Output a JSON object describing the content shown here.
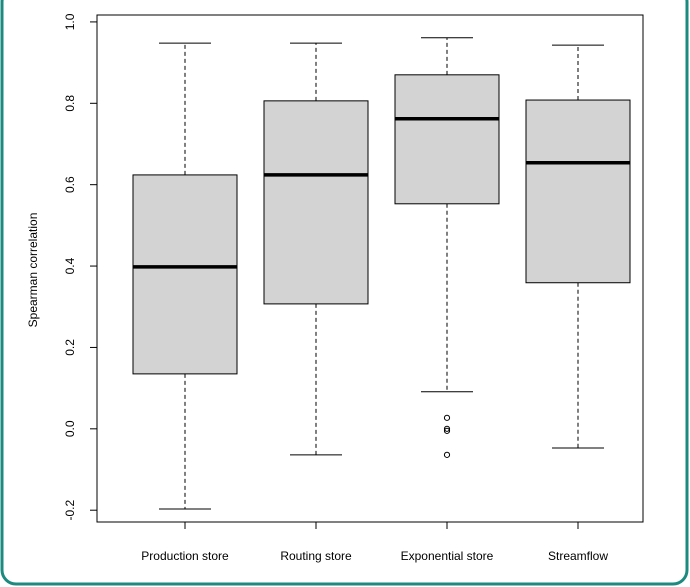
{
  "chart_data": {
    "type": "box",
    "y_label": "Spearman correlation",
    "categories": [
      "Production store",
      "Routing store",
      "Exponential store",
      "Streamflow"
    ],
    "color": "#d3d3d3",
    "boxes": [
      {
        "whisker_low": -0.197,
        "q1": 0.135,
        "median": 0.398,
        "q3": 0.624,
        "whisker_high": 0.948
      },
      {
        "whisker_low": -0.064,
        "q1": 0.307,
        "median": 0.624,
        "q3": 0.806,
        "whisker_high": 0.948
      },
      {
        "whisker_low": 0.091,
        "q1": 0.553,
        "median": 0.762,
        "q3": 0.87,
        "whisker_high": 0.961,
        "outliers": [
          0.027,
          0.0,
          -0.005,
          -0.064
        ]
      },
      {
        "whisker_low": -0.047,
        "q1": 0.359,
        "median": 0.654,
        "q3": 0.808,
        "whisker_high": 0.943
      }
    ],
    "ylim": [
      -0.229,
      1.017
    ],
    "yticks": [
      -0.2,
      {
        "value": 0,
        "label": "0.0"
      },
      0.2,
      0.4,
      0.6,
      0.8,
      {
        "value": 1,
        "label": "1.0"
      }
    ]
  }
}
